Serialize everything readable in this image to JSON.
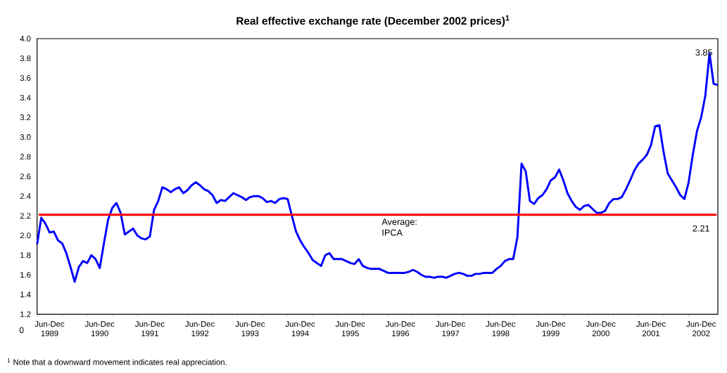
{
  "chart_data": {
    "type": "line",
    "title": "Real effective exchange rate  (December 2002 prices)$^{1}$",
    "x": [
      "1989-06",
      "1989-07",
      "1989-08",
      "1989-09",
      "1989-10",
      "1989-11",
      "1989-12",
      "1990-01",
      "1990-02",
      "1990-03",
      "1990-04",
      "1990-05",
      "1990-06",
      "1990-07",
      "1990-08",
      "1990-09",
      "1990-10",
      "1990-11",
      "1990-12",
      "1991-01",
      "1991-02",
      "1991-03",
      "1991-04",
      "1991-05",
      "1991-06",
      "1991-07",
      "1991-08",
      "1991-09",
      "1991-10",
      "1991-11",
      "1991-12",
      "1992-01",
      "1992-02",
      "1992-03",
      "1992-04",
      "1992-05",
      "1992-06",
      "1992-07",
      "1992-08",
      "1992-09",
      "1992-10",
      "1992-11",
      "1992-12",
      "1993-01",
      "1993-02",
      "1993-03",
      "1993-04",
      "1993-05",
      "1993-06",
      "1993-07",
      "1993-08",
      "1993-09",
      "1993-10",
      "1993-11",
      "1993-12",
      "1994-01",
      "1994-02",
      "1994-03",
      "1994-04",
      "1994-05",
      "1994-06",
      "1994-07",
      "1994-08",
      "1994-09",
      "1994-10",
      "1994-11",
      "1994-12",
      "1995-01",
      "1995-02",
      "1995-03",
      "1995-04",
      "1995-05",
      "1995-06",
      "1995-07",
      "1995-08",
      "1995-09",
      "1995-10",
      "1995-11",
      "1995-12",
      "1996-01",
      "1996-02",
      "1996-03",
      "1996-04",
      "1996-05",
      "1996-06",
      "1996-07",
      "1996-08",
      "1996-09",
      "1996-10",
      "1996-11",
      "1996-12",
      "1997-01",
      "1997-02",
      "1997-03",
      "1997-04",
      "1997-05",
      "1997-06",
      "1997-07",
      "1997-08",
      "1997-09",
      "1997-10",
      "1997-11",
      "1997-12",
      "1998-01",
      "1998-02",
      "1998-03",
      "1998-04",
      "1998-05",
      "1998-06",
      "1998-07",
      "1998-08",
      "1998-09",
      "1998-10",
      "1998-11",
      "1998-12",
      "1999-01",
      "1999-02",
      "1999-03",
      "1999-04",
      "1999-05",
      "1999-06",
      "1999-07",
      "1999-08",
      "1999-09",
      "1999-10",
      "1999-11",
      "1999-12",
      "2000-01",
      "2000-02",
      "2000-03",
      "2000-04",
      "2000-05",
      "2000-06",
      "2000-07",
      "2000-08",
      "2000-09",
      "2000-10",
      "2000-11",
      "2000-12",
      "2001-01",
      "2001-02",
      "2001-03",
      "2001-04",
      "2001-05",
      "2001-06",
      "2001-07",
      "2001-08",
      "2001-09",
      "2001-10",
      "2001-11",
      "2001-12",
      "2002-01",
      "2002-02",
      "2002-03",
      "2002-04",
      "2002-05",
      "2002-06",
      "2002-07",
      "2002-08",
      "2002-09",
      "2002-10",
      "2002-11",
      "2002-12",
      "2003-01"
    ],
    "series": [
      {
        "color": "#0000ff",
        "values": [
          1.91,
          2.18,
          2.12,
          2.03,
          2.04,
          1.95,
          1.92,
          1.82,
          1.68,
          1.53,
          1.68,
          1.74,
          1.72,
          1.8,
          1.76,
          1.67,
          1.92,
          2.16,
          2.28,
          2.33,
          2.23,
          2.01,
          2.04,
          2.07,
          2.0,
          1.97,
          1.96,
          1.99,
          2.26,
          2.35,
          2.49,
          2.47,
          2.44,
          2.47,
          2.49,
          2.43,
          2.46,
          2.51,
          2.54,
          2.51,
          2.47,
          2.45,
          2.41,
          2.33,
          2.36,
          2.35,
          2.39,
          2.43,
          2.41,
          2.39,
          2.36,
          2.39,
          2.4,
          2.4,
          2.38,
          2.34,
          2.35,
          2.33,
          2.37,
          2.38,
          2.37,
          2.2,
          2.04,
          1.95,
          1.88,
          1.82,
          1.75,
          1.72,
          1.69,
          1.8,
          1.82,
          1.76,
          1.76,
          1.76,
          1.74,
          1.72,
          1.71,
          1.76,
          1.69,
          1.67,
          1.66,
          1.66,
          1.66,
          1.64,
          1.62,
          1.62,
          1.62,
          1.62,
          1.62,
          1.63,
          1.65,
          1.63,
          1.6,
          1.58,
          1.58,
          1.57,
          1.58,
          1.58,
          1.57,
          1.59,
          1.61,
          1.62,
          1.61,
          1.59,
          1.59,
          1.61,
          1.61,
          1.62,
          1.62,
          1.62,
          1.66,
          1.69,
          1.74,
          1.76,
          1.76,
          1.98,
          2.73,
          2.65,
          2.35,
          2.32,
          2.38,
          2.41,
          2.47,
          2.56,
          2.59,
          2.67,
          2.56,
          2.43,
          2.35,
          2.29,
          2.26,
          2.3,
          2.31,
          2.27,
          2.23,
          2.23,
          2.25,
          2.33,
          2.37,
          2.37,
          2.39,
          2.47,
          2.56,
          2.66,
          2.73,
          2.77,
          2.82,
          2.92,
          3.11,
          3.12,
          2.85,
          2.63,
          2.56,
          2.49,
          2.41,
          2.37,
          2.54,
          2.82,
          3.06,
          3.2,
          3.42,
          3.85,
          3.54,
          3.53
        ]
      }
    ],
    "xlim": [
      "1989-06",
      "2003-01"
    ],
    "xticks": [
      {
        "value": "1989-06",
        "label": null
      },
      {
        "value": "1989-09",
        "label": "Jun-Dec 1989"
      },
      {
        "value": "1989-12",
        "label": null
      },
      {
        "value": "1990-06",
        "label": null
      },
      {
        "value": "1990-09",
        "label": "Jun-Dec 1990"
      },
      {
        "value": "1990-12",
        "label": null
      },
      {
        "value": "1991-06",
        "label": null
      },
      {
        "value": "1991-09",
        "label": "Jun-Dec 1991"
      },
      {
        "value": "1991-12",
        "label": null
      },
      {
        "value": "1992-06",
        "label": null
      },
      {
        "value": "1992-09",
        "label": "Jun-Dec 1992"
      },
      {
        "value": "1992-12",
        "label": null
      },
      {
        "value": "1993-06",
        "label": null
      },
      {
        "value": "1993-09",
        "label": "Jun-Dec 1993"
      },
      {
        "value": "1993-12",
        "label": null
      },
      {
        "value": "1994-06",
        "label": null
      },
      {
        "value": "1994-09",
        "label": "Jun-Dec 1994"
      },
      {
        "value": "1994-12",
        "label": null
      },
      {
        "value": "1995-06",
        "label": null
      },
      {
        "value": "1995-09",
        "label": "Jun-Dec 1995"
      },
      {
        "value": "1995-12",
        "label": null
      },
      {
        "value": "1996-06",
        "label": null
      },
      {
        "value": "1996-09",
        "label": "Jun-Dec 1996"
      },
      {
        "value": "1996-12",
        "label": null
      },
      {
        "value": "1997-06",
        "label": null
      },
      {
        "value": "1997-09",
        "label": "Jun-Dec 1997"
      },
      {
        "value": "1997-12",
        "label": null
      },
      {
        "value": "1998-06",
        "label": null
      },
      {
        "value": "1998-09",
        "label": "Jun-Dec 1998"
      },
      {
        "value": "1998-12",
        "label": null
      },
      {
        "value": "1999-06",
        "label": null
      },
      {
        "value": "1999-09",
        "label": "Jun-Dec 1999"
      },
      {
        "value": "1999-12",
        "label": null
      },
      {
        "value": "2000-06",
        "label": null
      },
      {
        "value": "2000-09",
        "label": "Jun-Dec 2000"
      },
      {
        "value": "2000-12",
        "label": null
      },
      {
        "value": "2001-06",
        "label": null
      },
      {
        "value": "2001-09",
        "label": "Jun-Dec 2001"
      },
      {
        "value": "2001-12",
        "label": null
      },
      {
        "value": "2002-06",
        "label": null
      },
      {
        "value": "2002-09",
        "label": "Jun-Dec 2002"
      },
      {
        "value": "2002-12",
        "label": null
      }
    ],
    "ylim": [
      1.2,
      4.0
    ],
    "yticks": [
      {
        "value": 1.2,
        "label": "1.2"
      },
      {
        "value": 1.4,
        "label": "1.4"
      },
      {
        "value": 1.6,
        "label": "1.6"
      },
      {
        "value": 1.8,
        "label": "1.8"
      },
      {
        "value": 2.0,
        "label": "2.0"
      },
      {
        "value": 2.2,
        "label": "2.2"
      },
      {
        "value": 2.4,
        "label": "2.4"
      },
      {
        "value": 2.6,
        "label": "2.6"
      },
      {
        "value": 2.8,
        "label": "2.8"
      },
      {
        "value": 3.0,
        "label": "3.0"
      },
      {
        "value": 3.2,
        "label": "3.2"
      },
      {
        "value": 3.4,
        "label": "3.4"
      },
      {
        "value": 3.6,
        "label": "3.6"
      },
      {
        "value": 3.8,
        "label": "3.8"
      },
      {
        "value": 4.0,
        "label": "4.0"
      }
    ],
    "ref_lines": [
      {
        "axis": "y",
        "value": 2.21,
        "label": "Average: IPCA",
        "color": "#ff0000"
      }
    ],
    "annotations": [
      "0",
      "$^{1}$ Note that a downward movement indicates real appreciation.",
      {
        "text": "2.21",
        "x": "2002-09",
        "y": 2.21
      },
      {
        "text": "3.85",
        "x": "2002-11",
        "y": 3.85
      }
    ]
  }
}
